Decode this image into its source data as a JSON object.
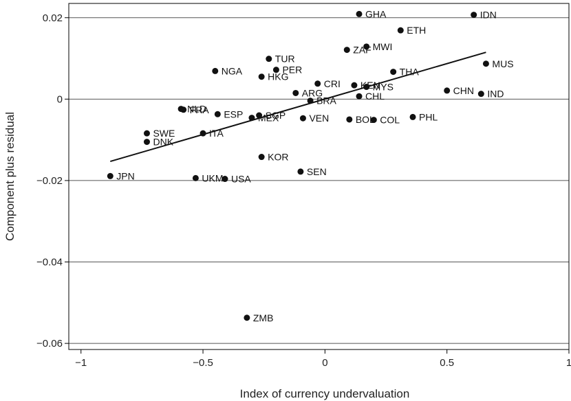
{
  "chart_data": {
    "type": "scatter",
    "title": "",
    "xlabel": "Index of currency undervaluation",
    "ylabel": "Component plus residual",
    "xlim": [
      -1.05,
      1.0
    ],
    "ylim": [
      -0.0615,
      0.0235
    ],
    "xticks": [
      -1,
      -0.5,
      0,
      0.5,
      1
    ],
    "xtick_labels": [
      "−1",
      "−0.5",
      "0",
      "0.5",
      "1"
    ],
    "yticks": [
      0.02,
      0,
      -0.02,
      -0.04,
      -0.06
    ],
    "ytick_labels": [
      "0.02",
      "0",
      "−0.02",
      "−0.04",
      "−0.06"
    ],
    "grid": "horizontal",
    "fit_line": {
      "x": [
        -0.88,
        0.66
      ],
      "y": [
        -0.0153,
        0.0115
      ]
    },
    "points": [
      {
        "label": "GHA",
        "x": 0.14,
        "y": 0.0209
      },
      {
        "label": "IDN",
        "x": 0.61,
        "y": 0.0207
      },
      {
        "label": "ETH",
        "x": 0.31,
        "y": 0.0169
      },
      {
        "label": "MWI",
        "x": 0.17,
        "y": 0.0129
      },
      {
        "label": "ZAF",
        "x": 0.09,
        "y": 0.0121
      },
      {
        "label": "TUR",
        "x": -0.23,
        "y": 0.0099
      },
      {
        "label": "MUS",
        "x": 0.66,
        "y": 0.0087
      },
      {
        "label": "PER",
        "x": -0.2,
        "y": 0.0072
      },
      {
        "label": "NGA",
        "x": -0.45,
        "y": 0.0069
      },
      {
        "label": "THA",
        "x": 0.28,
        "y": 0.0067
      },
      {
        "label": "HKG",
        "x": -0.26,
        "y": 0.0055
      },
      {
        "label": "CRI",
        "x": -0.03,
        "y": 0.0038
      },
      {
        "label": "KEN",
        "x": 0.12,
        "y": 0.0034
      },
      {
        "label": "MYS",
        "x": 0.17,
        "y": 0.003
      },
      {
        "label": "CHN",
        "x": 0.5,
        "y": 0.0021
      },
      {
        "label": "ARG",
        "x": -0.12,
        "y": 0.0015
      },
      {
        "label": "IND",
        "x": 0.64,
        "y": 0.0013
      },
      {
        "label": "CHL",
        "x": 0.14,
        "y": 0.0007
      },
      {
        "label": "BRA",
        "x": -0.06,
        "y": -0.0004
      },
      {
        "label": "NLD",
        "x": -0.59,
        "y": -0.0024
      },
      {
        "label": "FRA",
        "x": -0.58,
        "y": -0.0026
      },
      {
        "label": "ESP",
        "x": -0.44,
        "y": -0.0037
      },
      {
        "label": "SGP",
        "x": -0.27,
        "y": -0.004
      },
      {
        "label": "MEX",
        "x": -0.3,
        "y": -0.0046
      },
      {
        "label": "VEN",
        "x": -0.09,
        "y": -0.0047
      },
      {
        "label": "PHL",
        "x": 0.36,
        "y": -0.0044
      },
      {
        "label": "BOL",
        "x": 0.1,
        "y": -0.005
      },
      {
        "label": "COL",
        "x": 0.2,
        "y": -0.0051
      },
      {
        "label": "SWE",
        "x": -0.73,
        "y": -0.0084
      },
      {
        "label": "ITA",
        "x": -0.5,
        "y": -0.0084
      },
      {
        "label": "DNK",
        "x": -0.73,
        "y": -0.0105
      },
      {
        "label": "KOR",
        "x": -0.26,
        "y": -0.0142
      },
      {
        "label": "SEN",
        "x": -0.1,
        "y": -0.0178
      },
      {
        "label": "JPN",
        "x": -0.88,
        "y": -0.0189
      },
      {
        "label": "UKM",
        "x": -0.53,
        "y": -0.0194
      },
      {
        "label": "USA",
        "x": -0.41,
        "y": -0.0196
      },
      {
        "label": "ZMB",
        "x": -0.32,
        "y": -0.0537
      }
    ]
  }
}
